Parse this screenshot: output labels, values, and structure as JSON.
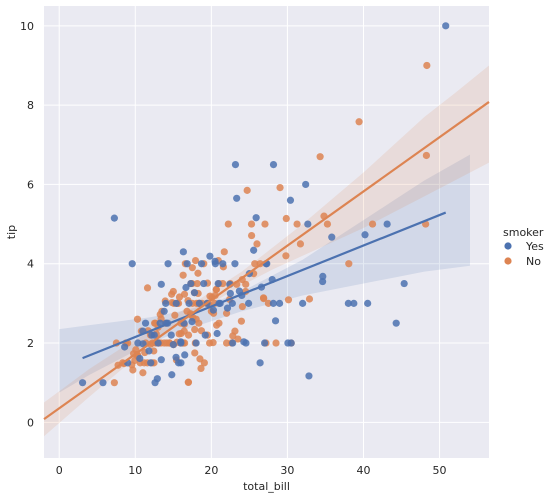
{
  "chart_data": {
    "type": "scatter",
    "xlabel": "total_bill",
    "ylabel": "tip",
    "xlim": [
      -2,
      56.5
    ],
    "ylim": [
      -0.9,
      10.5
    ],
    "xticks": [
      0,
      10,
      20,
      30,
      40,
      50
    ],
    "yticks": [
      0,
      2,
      4,
      6,
      8,
      10
    ],
    "grid": true,
    "legend": {
      "title": "smoker",
      "placement": "right",
      "entries": [
        "Yes",
        "No"
      ]
    },
    "series": [
      {
        "name": "Yes",
        "color": "#4C72B0",
        "regression": {
          "x": [
            3.07,
            50.81
          ],
          "y": [
            1.62,
            5.29
          ],
          "ci_x": [
            0,
            4,
            8,
            12,
            16,
            20,
            24,
            28,
            32,
            36,
            40,
            44,
            48,
            54
          ],
          "ci_lower": [
            0.75,
            1.2,
            1.6,
            2.0,
            2.3,
            2.55,
            2.8,
            3.0,
            3.2,
            3.35,
            3.5,
            3.65,
            3.8,
            3.95
          ],
          "ci_upper": [
            2.35,
            2.45,
            2.55,
            2.65,
            2.8,
            3.0,
            3.3,
            3.7,
            4.1,
            4.6,
            5.1,
            5.6,
            6.1,
            6.75
          ]
        },
        "points": [
          [
            3.07,
            1.0
          ],
          [
            5.75,
            1.0
          ],
          [
            7.25,
            5.15
          ],
          [
            9.6,
            4.0
          ],
          [
            10.34,
            2.0
          ],
          [
            10.59,
            1.61
          ],
          [
            11.02,
            1.98
          ],
          [
            11.35,
            2.5
          ],
          [
            12.03,
            1.5
          ],
          [
            12.16,
            2.2
          ],
          [
            12.6,
            1.0
          ],
          [
            12.9,
            1.1
          ],
          [
            13.0,
            2.0
          ],
          [
            13.27,
            2.5
          ],
          [
            13.42,
            1.58
          ],
          [
            13.42,
            3.48
          ],
          [
            14.0,
            3.0
          ],
          [
            14.07,
            2.5
          ],
          [
            14.26,
            2.5
          ],
          [
            14.31,
            4.0
          ],
          [
            14.73,
            2.2
          ],
          [
            15.36,
            1.64
          ],
          [
            15.38,
            3.0
          ],
          [
            15.69,
            1.5
          ],
          [
            15.98,
            2.03
          ],
          [
            16.0,
            2.0
          ],
          [
            16.32,
            4.3
          ],
          [
            16.4,
            2.5
          ],
          [
            16.66,
            3.4
          ],
          [
            16.82,
            4.0
          ],
          [
            17.07,
            3.0
          ],
          [
            17.46,
            2.54
          ],
          [
            17.78,
            3.27
          ],
          [
            18.43,
            3.0
          ],
          [
            18.71,
            4.0
          ],
          [
            19.44,
            3.0
          ],
          [
            19.81,
            4.19
          ],
          [
            20.27,
            2.83
          ],
          [
            20.49,
            4.06
          ],
          [
            20.53,
            4.0
          ],
          [
            20.76,
            2.24
          ],
          [
            20.9,
            3.5
          ],
          [
            21.01,
            3.0
          ],
          [
            21.16,
            3.0
          ],
          [
            22.12,
            2.88
          ],
          [
            22.42,
            3.48
          ],
          [
            22.76,
            3.0
          ],
          [
            23.1,
            4.0
          ],
          [
            23.17,
            6.5
          ],
          [
            23.33,
            5.65
          ],
          [
            23.68,
            3.31
          ],
          [
            24.27,
            2.03
          ],
          [
            24.55,
            2.0
          ],
          [
            25.56,
            4.34
          ],
          [
            25.89,
            5.16
          ],
          [
            26.41,
            1.5
          ],
          [
            27.2,
            4.0
          ],
          [
            27.28,
            4.0
          ],
          [
            28.15,
            3.0
          ],
          [
            28.17,
            6.5
          ],
          [
            28.44,
            2.56
          ],
          [
            28.97,
            3.0
          ],
          [
            30.06,
            2.0
          ],
          [
            30.4,
            5.6
          ],
          [
            32.4,
            6.0
          ],
          [
            32.68,
            5.0
          ],
          [
            32.83,
            1.17
          ],
          [
            34.63,
            3.55
          ],
          [
            34.65,
            3.68
          ],
          [
            35.83,
            4.67
          ],
          [
            38.01,
            3.0
          ],
          [
            38.73,
            3.0
          ],
          [
            40.55,
            3.0
          ],
          [
            43.11,
            5.0
          ],
          [
            44.3,
            2.5
          ],
          [
            45.35,
            3.5
          ],
          [
            50.81,
            10.0
          ],
          [
            26.59,
            3.41
          ],
          [
            25.0,
            3.75
          ],
          [
            22.5,
            3.25
          ],
          [
            19.0,
            3.5
          ],
          [
            17.3,
            3.5
          ],
          [
            16.5,
            1.7
          ],
          [
            15.0,
            1.96
          ],
          [
            13.8,
            2.8
          ],
          [
            11.8,
            1.8
          ],
          [
            9.0,
            1.5
          ],
          [
            8.6,
            1.9
          ],
          [
            32.0,
            3.0
          ],
          [
            30.5,
            2.0
          ],
          [
            28.0,
            3.6
          ],
          [
            27.0,
            2.0
          ],
          [
            24.0,
            3.2
          ],
          [
            21.5,
            4.0
          ],
          [
            19.2,
            2.2
          ],
          [
            18.0,
            2.0
          ],
          [
            16.0,
            1.5
          ],
          [
            14.8,
            1.2
          ],
          [
            12.5,
            2.2
          ],
          [
            11.0,
            2.3
          ],
          [
            40.2,
            4.73
          ],
          [
            24.9,
            3.0
          ],
          [
            22.8,
            2.0
          ]
        ]
      },
      {
        "name": "No",
        "color": "#DD8452",
        "regression": {
          "x": [
            -2,
            56.5
          ],
          "y": [
            0.08,
            8.08
          ],
          "ci_x": [
            -2,
            4,
            8,
            12,
            16,
            20,
            24,
            28,
            32,
            36,
            40,
            44,
            48,
            52,
            56.5
          ],
          "ci_lower": [
            -0.35,
            0.65,
            1.3,
            1.95,
            2.5,
            3.0,
            3.45,
            3.85,
            4.2,
            4.55,
            4.9,
            5.3,
            5.7,
            6.1,
            6.55
          ],
          "ci_upper": [
            0.5,
            1.35,
            1.85,
            2.3,
            2.8,
            3.3,
            3.8,
            4.4,
            5.0,
            5.65,
            6.3,
            7.0,
            7.7,
            8.3,
            9.0
          ]
        },
        "points": [
          [
            7.25,
            1.0
          ],
          [
            7.51,
            2.0
          ],
          [
            7.74,
            1.44
          ],
          [
            8.35,
            1.5
          ],
          [
            8.52,
            1.48
          ],
          [
            8.77,
            2.0
          ],
          [
            9.55,
            1.45
          ],
          [
            9.68,
            1.32
          ],
          [
            9.78,
            1.73
          ],
          [
            10.07,
            1.83
          ],
          [
            10.27,
            1.71
          ],
          [
            10.29,
            2.6
          ],
          [
            10.33,
            1.67
          ],
          [
            10.34,
            1.66
          ],
          [
            10.65,
            1.5
          ],
          [
            11.17,
            1.5
          ],
          [
            11.24,
            1.76
          ],
          [
            11.38,
            2.0
          ],
          [
            11.59,
            1.5
          ],
          [
            11.61,
            3.39
          ],
          [
            11.69,
            2.31
          ],
          [
            12.02,
            1.97
          ],
          [
            12.26,
            2.0
          ],
          [
            12.43,
            1.8
          ],
          [
            12.46,
            1.5
          ],
          [
            12.54,
            2.5
          ],
          [
            12.66,
            2.5
          ],
          [
            12.69,
            2.0
          ],
          [
            12.74,
            2.01
          ],
          [
            12.76,
            2.23
          ],
          [
            13.0,
            2.0
          ],
          [
            13.03,
            2.0
          ],
          [
            13.13,
            2.0
          ],
          [
            13.28,
            2.72
          ],
          [
            13.37,
            2.0
          ],
          [
            13.39,
            2.61
          ],
          [
            13.81,
            2.0
          ],
          [
            13.94,
            3.06
          ],
          [
            14.15,
            2.0
          ],
          [
            14.48,
            2.0
          ],
          [
            14.52,
            2.0
          ],
          [
            14.78,
            3.23
          ],
          [
            14.83,
            3.02
          ],
          [
            15.04,
            1.96
          ],
          [
            15.06,
            3.0
          ],
          [
            15.42,
            1.57
          ],
          [
            15.48,
            2.02
          ],
          [
            15.53,
            3.0
          ],
          [
            15.69,
            3.0
          ],
          [
            15.77,
            2.23
          ],
          [
            15.81,
            3.16
          ],
          [
            15.95,
            2.0
          ],
          [
            16.04,
            2.24
          ],
          [
            16.21,
            2.0
          ],
          [
            16.29,
            3.71
          ],
          [
            16.31,
            2.0
          ],
          [
            16.43,
            2.3
          ],
          [
            16.45,
            2.47
          ],
          [
            16.47,
            3.23
          ],
          [
            16.49,
            2.0
          ],
          [
            16.58,
            4.0
          ],
          [
            16.93,
            3.07
          ],
          [
            16.97,
            1.01
          ],
          [
            16.99,
            1.01
          ],
          [
            17.26,
            2.74
          ],
          [
            17.29,
            2.71
          ],
          [
            17.31,
            3.5
          ],
          [
            17.47,
            3.5
          ],
          [
            17.51,
            3.0
          ],
          [
            17.59,
            2.64
          ],
          [
            17.78,
            3.27
          ],
          [
            17.81,
            2.34
          ],
          [
            17.82,
            1.75
          ],
          [
            17.89,
            2.0
          ],
          [
            17.92,
            4.08
          ],
          [
            18.04,
            3.0
          ],
          [
            18.15,
            3.5
          ],
          [
            18.24,
            3.76
          ],
          [
            18.26,
            3.25
          ],
          [
            18.29,
            3.0
          ],
          [
            18.35,
            2.5
          ],
          [
            18.43,
            3.0
          ],
          [
            18.64,
            1.36
          ],
          [
            18.69,
            2.31
          ],
          [
            18.78,
            3.0
          ],
          [
            19.08,
            1.5
          ],
          [
            19.44,
            3.0
          ],
          [
            19.49,
            3.51
          ],
          [
            19.65,
            3.0
          ],
          [
            19.77,
            2.0
          ],
          [
            19.82,
            3.18
          ],
          [
            20.08,
            3.15
          ],
          [
            20.23,
            2.01
          ],
          [
            20.29,
            2.75
          ],
          [
            20.45,
            3.0
          ],
          [
            20.65,
            3.35
          ],
          [
            20.69,
            2.45
          ],
          [
            20.92,
            4.08
          ],
          [
            20.65,
            3.35
          ],
          [
            21.01,
            3.5
          ],
          [
            21.5,
            3.5
          ],
          [
            21.58,
            3.92
          ],
          [
            21.7,
            4.3
          ],
          [
            22.23,
            5.0
          ],
          [
            22.49,
            3.5
          ],
          [
            22.67,
            2.0
          ],
          [
            22.82,
            2.18
          ],
          [
            23.33,
            3.48
          ],
          [
            23.95,
            2.55
          ],
          [
            24.06,
            3.6
          ],
          [
            24.08,
            2.92
          ],
          [
            24.52,
            3.48
          ],
          [
            24.71,
            5.85
          ],
          [
            25.28,
            5.0
          ],
          [
            25.29,
            4.71
          ],
          [
            25.71,
            4.0
          ],
          [
            26.86,
            3.14
          ],
          [
            26.88,
            3.12
          ],
          [
            27.05,
            5.0
          ],
          [
            27.18,
            2.0
          ],
          [
            29.03,
            5.92
          ],
          [
            29.8,
            4.2
          ],
          [
            29.85,
            5.14
          ],
          [
            30.14,
            3.09
          ],
          [
            31.27,
            5.0
          ],
          [
            31.71,
            4.5
          ],
          [
            32.9,
            3.11
          ],
          [
            34.3,
            6.7
          ],
          [
            34.81,
            5.2
          ],
          [
            35.26,
            5.0
          ],
          [
            38.07,
            4.0
          ],
          [
            39.42,
            7.58
          ],
          [
            41.19,
            5.0
          ],
          [
            48.17,
            5.0
          ],
          [
            48.27,
            6.73
          ],
          [
            48.33,
            9.0
          ],
          [
            22.0,
            2.75
          ],
          [
            23.1,
            2.3
          ],
          [
            25.56,
            3.75
          ],
          [
            26.41,
            4.0
          ],
          [
            19.0,
            4.0
          ],
          [
            20.0,
            2.8
          ],
          [
            13.5,
            2.8
          ],
          [
            14.0,
            2.5
          ],
          [
            9.94,
            1.56
          ],
          [
            16.0,
            2.5
          ],
          [
            18.5,
            1.6
          ],
          [
            22.0,
            2.0
          ],
          [
            24.5,
            3.3
          ],
          [
            27.5,
            3.0
          ],
          [
            12.0,
            2.2
          ],
          [
            11.0,
            1.25
          ],
          [
            9.0,
            2.0
          ],
          [
            15.2,
            2.7
          ],
          [
            17.0,
            2.2
          ],
          [
            19.5,
            2.2
          ],
          [
            21.0,
            2.5
          ],
          [
            23.5,
            2.1
          ],
          [
            28.5,
            2.0
          ],
          [
            30.5,
            2.0
          ],
          [
            15.0,
            3.3
          ],
          [
            13.0,
            2.4
          ],
          [
            16.8,
            2.8
          ],
          [
            18.0,
            2.6
          ],
          [
            20.5,
            3.2
          ],
          [
            22.4,
            3.1
          ],
          [
            26.0,
            4.5
          ],
          [
            10.8,
            2.3
          ],
          [
            12.2,
            1.5
          ],
          [
            17.5,
            3.9
          ]
        ]
      }
    ]
  }
}
